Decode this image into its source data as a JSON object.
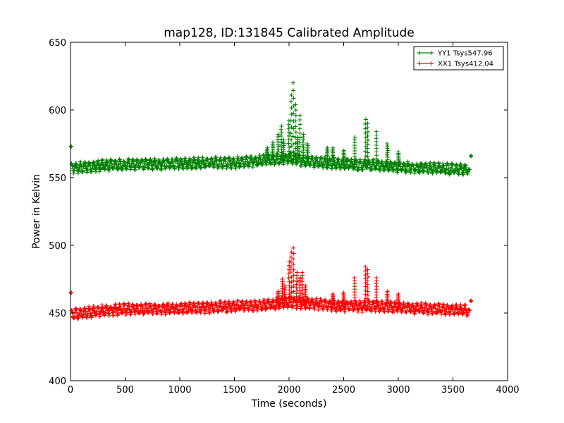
{
  "chart_data": {
    "type": "scatter",
    "title": "map128, ID:131845 Calibrated Amplitude",
    "xlabel": "Time (seconds)",
    "ylabel": "Power in Kelvin",
    "xlim": [
      0,
      4000
    ],
    "ylim": [
      400,
      650
    ],
    "x_ticks": [
      0,
      500,
      1000,
      1500,
      2000,
      2500,
      3000,
      3500,
      4000
    ],
    "y_ticks": [
      400,
      450,
      500,
      550,
      600,
      650
    ],
    "grid": false,
    "legend_position": "top-right",
    "marker": "plus",
    "series": [
      {
        "name": "YY1 Tsys547.96",
        "color": "#008000",
        "x_range": [
          0,
          3660
        ],
        "outlier_points": [
          [
            5,
            573
          ],
          [
            3650,
            556
          ],
          [
            3665,
            566
          ]
        ],
        "baseline": [
          [
            10,
            557
          ],
          [
            300,
            559
          ],
          [
            600,
            560
          ],
          [
            900,
            560
          ],
          [
            1200,
            561
          ],
          [
            1500,
            561
          ],
          [
            1800,
            563
          ],
          [
            2000,
            564
          ],
          [
            2200,
            562
          ],
          [
            2500,
            560
          ],
          [
            2800,
            559
          ],
          [
            3000,
            558
          ],
          [
            3300,
            557
          ],
          [
            3600,
            556
          ]
        ],
        "spikes": [
          [
            1800,
            572
          ],
          [
            1850,
            576
          ],
          [
            1900,
            582
          ],
          [
            1930,
            588
          ],
          [
            1950,
            578
          ],
          [
            2000,
            592
          ],
          [
            2020,
            611
          ],
          [
            2040,
            620
          ],
          [
            2060,
            604
          ],
          [
            2080,
            580
          ],
          [
            2100,
            596
          ],
          [
            2130,
            582
          ],
          [
            2170,
            575
          ],
          [
            2350,
            572
          ],
          [
            2400,
            572
          ],
          [
            2500,
            570
          ],
          [
            2600,
            580
          ],
          [
            2700,
            593
          ],
          [
            2720,
            590
          ],
          [
            2800,
            584
          ],
          [
            2900,
            575
          ],
          [
            3000,
            569
          ]
        ]
      },
      {
        "name": "XX1 Tsys412.04",
        "color": "#ff0000",
        "x_range": [
          0,
          3660
        ],
        "outlier_points": [
          [
            5,
            465
          ],
          [
            3650,
            452
          ],
          [
            3665,
            459
          ]
        ],
        "baseline": [
          [
            10,
            449
          ],
          [
            300,
            452
          ],
          [
            600,
            453
          ],
          [
            900,
            453
          ],
          [
            1200,
            454
          ],
          [
            1500,
            455
          ],
          [
            1800,
            456
          ],
          [
            2000,
            458
          ],
          [
            2200,
            457
          ],
          [
            2500,
            455
          ],
          [
            2800,
            455
          ],
          [
            3000,
            454
          ],
          [
            3300,
            453
          ],
          [
            3600,
            452
          ]
        ],
        "spikes": [
          [
            1900,
            466
          ],
          [
            1940,
            475
          ],
          [
            1960,
            470
          ],
          [
            2000,
            488
          ],
          [
            2020,
            495
          ],
          [
            2040,
            498
          ],
          [
            2070,
            480
          ],
          [
            2100,
            476
          ],
          [
            2120,
            480
          ],
          [
            2150,
            470
          ],
          [
            2400,
            464
          ],
          [
            2500,
            465
          ],
          [
            2600,
            476
          ],
          [
            2700,
            484
          ],
          [
            2720,
            482
          ],
          [
            2800,
            476
          ],
          [
            2900,
            466
          ],
          [
            3000,
            464
          ]
        ]
      }
    ]
  }
}
